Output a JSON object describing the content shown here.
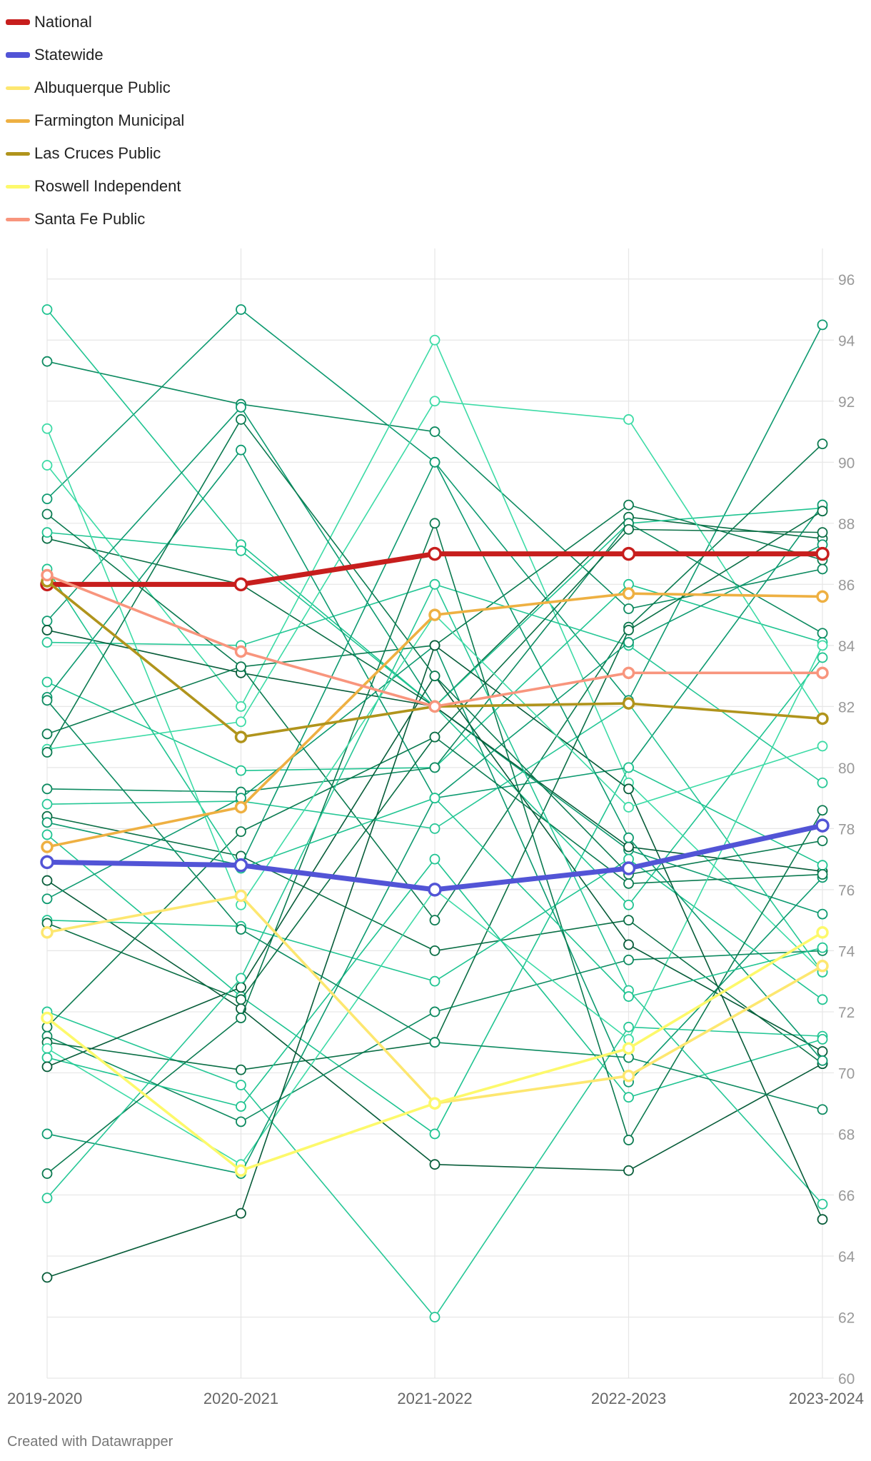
{
  "credit": "Created with Datawrapper",
  "chart_data": {
    "type": "line",
    "x": [
      "2019-2020",
      "2020-2021",
      "2021-2022",
      "2022-2023",
      "2023-2024"
    ],
    "ylim": [
      60,
      97
    ],
    "yticks": [
      60,
      62,
      64,
      66,
      68,
      70,
      72,
      74,
      76,
      78,
      80,
      82,
      84,
      86,
      88,
      90,
      92,
      94,
      96
    ],
    "grid": true,
    "legend_position": "top-left",
    "highlighted_series": [
      {
        "name": "National",
        "color": "#c71e1d",
        "values": [
          86,
          86,
          87,
          87,
          87
        ]
      },
      {
        "name": "Statewide",
        "color": "#5254d6",
        "values": [
          76.9,
          76.8,
          76,
          76.7,
          78.1
        ]
      },
      {
        "name": "Albuquerque Public",
        "color": "#fde770",
        "values": [
          74.6,
          75.8,
          69,
          69.9,
          73.5
        ]
      },
      {
        "name": "Farmington Municipal",
        "color": "#eeb042",
        "values": [
          77.4,
          78.7,
          85,
          85.7,
          85.6
        ]
      },
      {
        "name": "Las Cruces Public",
        "color": "#b0941c",
        "values": [
          86.1,
          81,
          82,
          82.1,
          81.6
        ]
      },
      {
        "name": "Roswell Independent",
        "color": "#fdf96b",
        "values": [
          71.8,
          66.8,
          69,
          70.8,
          74.6
        ]
      },
      {
        "name": "Santa Fe Public",
        "color": "#f8957d",
        "values": [
          86.3,
          83.8,
          82,
          83.1,
          83.1
        ]
      }
    ],
    "background_series": [
      {
        "color": "#0d9a70",
        "values": [
          88.8,
          95,
          90,
          82.2,
          94.5
        ]
      },
      {
        "color": "#0d8a60",
        "values": [
          93.3,
          91.9,
          91,
          85.2,
          86.5
        ]
      },
      {
        "color": "#1fc491",
        "values": [
          95,
          87.3,
          82,
          75.5,
          83.6
        ]
      },
      {
        "color": "#0a6e45",
        "values": [
          87.5,
          86,
          82,
          88.2,
          87.5
        ]
      },
      {
        "color": "#3ddba6",
        "values": [
          89.9,
          82,
          94,
          79.5,
          73.3
        ]
      },
      {
        "color": "#1fc491",
        "values": [
          87.7,
          87.1,
          82,
          88,
          88.5
        ]
      },
      {
        "color": "#0b7a50",
        "values": [
          88.3,
          83.3,
          84,
          88.6,
          86.8
        ]
      },
      {
        "color": "#26c796",
        "values": [
          84.1,
          84,
          86,
          84,
          79.5
        ]
      },
      {
        "color": "#0d9a70",
        "values": [
          84.8,
          91.8,
          82,
          77.3,
          75.2
        ]
      },
      {
        "color": "#075c39",
        "values": [
          84.5,
          83.1,
          82,
          77.4,
          76.6
        ]
      },
      {
        "color": "#1fc491",
        "values": [
          82.8,
          79.9,
          80,
          86,
          84.1
        ]
      },
      {
        "color": "#0d9a70",
        "values": [
          82.3,
          90.4,
          79,
          80,
          88.6
        ]
      },
      {
        "color": "#0b7a50",
        "values": [
          81.1,
          83.3,
          75,
          84.6,
          90.6
        ]
      },
      {
        "color": "#3ddba6",
        "values": [
          80.6,
          81.5,
          92,
          91.4,
          81.6
        ]
      },
      {
        "color": "#0d8a60",
        "values": [
          79.3,
          79.2,
          80,
          88,
          84.4
        ]
      },
      {
        "color": "#26c796",
        "values": [
          78.8,
          78.9,
          78,
          82.1,
          73.3
        ]
      },
      {
        "color": "#0a6e45",
        "values": [
          78.4,
          77.1,
          74,
          75,
          70.3
        ]
      },
      {
        "color": "#1fc491",
        "values": [
          77.8,
          72.5,
          68,
          80,
          76.8
        ]
      },
      {
        "color": "#075c39",
        "values": [
          76.3,
          72.1,
          67,
          66.8,
          70.3
        ]
      },
      {
        "color": "#0d9a70",
        "values": [
          75.7,
          79,
          84,
          69.7,
          76.4
        ]
      },
      {
        "color": "#1fc491",
        "values": [
          75,
          74.8,
          73,
          77,
          72.4
        ]
      },
      {
        "color": "#26c796",
        "values": [
          72,
          69.6,
          62,
          71.5,
          71.2
        ]
      },
      {
        "color": "#0b7a50",
        "values": [
          71.5,
          77.9,
          81,
          76.2,
          76.5
        ]
      },
      {
        "color": "#0d8a60",
        "values": [
          71.2,
          68.4,
          72,
          73.7,
          74
        ]
      },
      {
        "color": "#0a6e45",
        "values": [
          71,
          70.1,
          71,
          84.5,
          88.4
        ]
      },
      {
        "color": "#3ddba6",
        "values": [
          70.8,
          67,
          76,
          71.1,
          84
        ]
      },
      {
        "color": "#1fc491",
        "values": [
          70.5,
          68.9,
          77,
          69.2,
          71.1
        ]
      },
      {
        "color": "#075c39",
        "values": [
          70.2,
          72.8,
          83,
          74.2,
          70.7
        ]
      },
      {
        "color": "#0d9a70",
        "values": [
          68,
          66.7,
          79,
          84.1,
          87.3
        ]
      },
      {
        "color": "#0b7a50",
        "values": [
          66.7,
          71.8,
          88,
          67.8,
          78.6
        ]
      },
      {
        "color": "#26c796",
        "values": [
          65.9,
          73.1,
          86,
          72.7,
          65.7
        ]
      },
      {
        "color": "#075c39",
        "values": [
          63.3,
          65.4,
          84,
          79.3,
          65.2
        ]
      },
      {
        "color": "#1fc491",
        "values": [
          86.5,
          76.7,
          79,
          72.5,
          74.1
        ]
      },
      {
        "color": "#0d8a60",
        "values": [
          82.2,
          74.7,
          71,
          70.5,
          68.8
        ]
      },
      {
        "color": "#0a6e45",
        "values": [
          74.9,
          72.4,
          81,
          87.8,
          87.7
        ]
      },
      {
        "color": "#3ddba6",
        "values": [
          91.1,
          75.5,
          85,
          78.7,
          80.7
        ]
      },
      {
        "color": "#0d9a70",
        "values": [
          78.2,
          76.8,
          90,
          77.7,
          70.4
        ]
      },
      {
        "color": "#0b7a50",
        "values": [
          80.5,
          91.4,
          83,
          76.5,
          77.6
        ]
      }
    ]
  }
}
